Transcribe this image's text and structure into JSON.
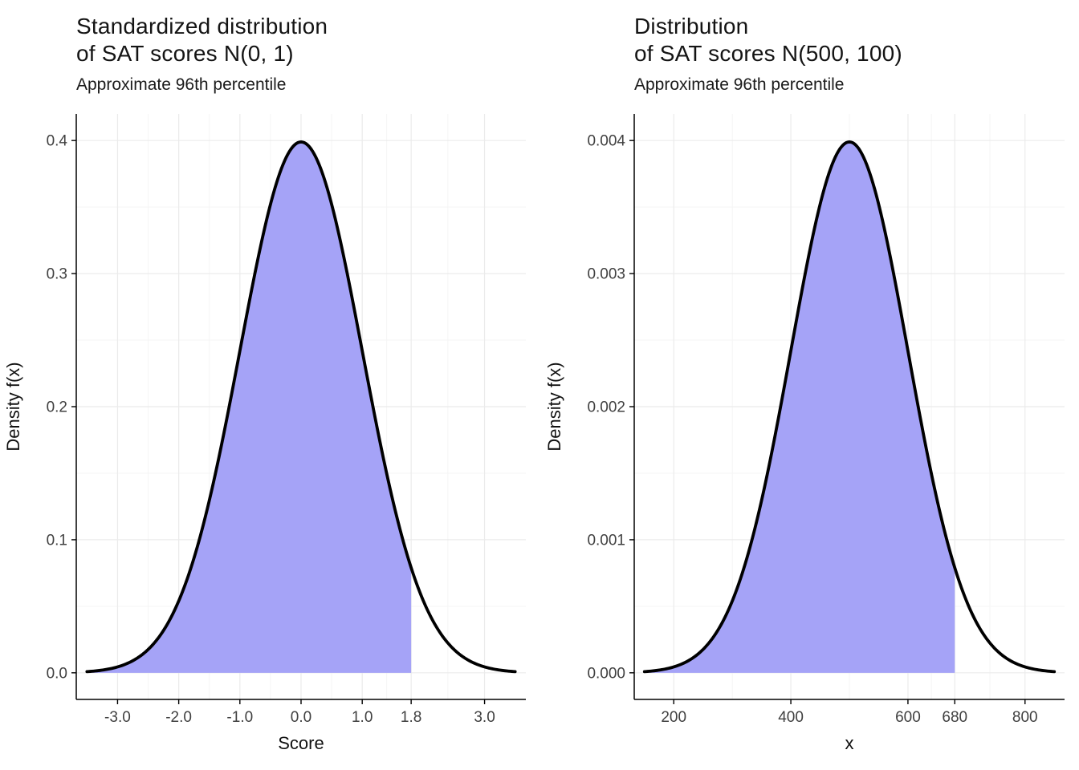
{
  "page": {
    "background": "#ffffff"
  },
  "chart_data": [
    {
      "type": "area",
      "title_lines": [
        "Standardized distribution",
        "of SAT scores N(0, 1)"
      ],
      "subtitle": "Approximate 96th percentile",
      "xlabel": "Score",
      "ylabel": "Density f(x)",
      "distribution": {
        "name": "normal",
        "mean": 0,
        "sd": 1
      },
      "curve_range": [
        -3.5,
        3.5
      ],
      "shade_range": [
        -3.5,
        1.8
      ],
      "annotation": "area under curve shaded up to approximate 96th percentile at score = 1.8",
      "x_ticks": [
        -3.0,
        -2.0,
        -1.0,
        0.0,
        1.0,
        1.8,
        3.0
      ],
      "x_tick_labels": [
        "-3.0",
        "-2.0",
        "-1.0",
        "0.0",
        "1.0",
        "1.8",
        "3.0"
      ],
      "ylim": [
        0,
        0.4
      ],
      "y_ticks": [
        0.0,
        0.1,
        0.2,
        0.3,
        0.4
      ],
      "y_tick_labels": [
        "0.0",
        "0.1",
        "0.2",
        "0.3",
        "0.4"
      ],
      "peak_density": 0.3989,
      "grid": "on",
      "legend": "none",
      "colors": {
        "fill": "#a5a3f7",
        "line": "#000000",
        "grid_major": "#ebebeb",
        "grid_minor": "#f5f5f5",
        "axis": "#000000",
        "tick_text": "#404040"
      }
    },
    {
      "type": "area",
      "title_lines": [
        "Distribution",
        "of SAT scores N(500, 100)"
      ],
      "subtitle": "Approximate 96th percentile",
      "xlabel": "x",
      "ylabel": "Density f(x)",
      "distribution": {
        "name": "normal",
        "mean": 500,
        "sd": 100
      },
      "curve_range": [
        150,
        850
      ],
      "shade_range": [
        150,
        680
      ],
      "annotation": "area under curve shaded up to approximate 96th percentile at x = 680",
      "x_ticks": [
        200,
        400,
        600,
        680,
        800
      ],
      "x_tick_labels": [
        "200",
        "400",
        "600",
        "680",
        "800"
      ],
      "ylim": [
        0,
        0.004
      ],
      "y_ticks": [
        0.0,
        0.001,
        0.002,
        0.003,
        0.004
      ],
      "y_tick_labels": [
        "0.000",
        "0.001",
        "0.002",
        "0.003",
        "0.004"
      ],
      "peak_density": 0.003989,
      "grid": "on",
      "legend": "none",
      "colors": {
        "fill": "#a5a3f7",
        "line": "#000000",
        "grid_major": "#ebebeb",
        "grid_minor": "#f5f5f5",
        "axis": "#000000",
        "tick_text": "#404040"
      }
    }
  ]
}
